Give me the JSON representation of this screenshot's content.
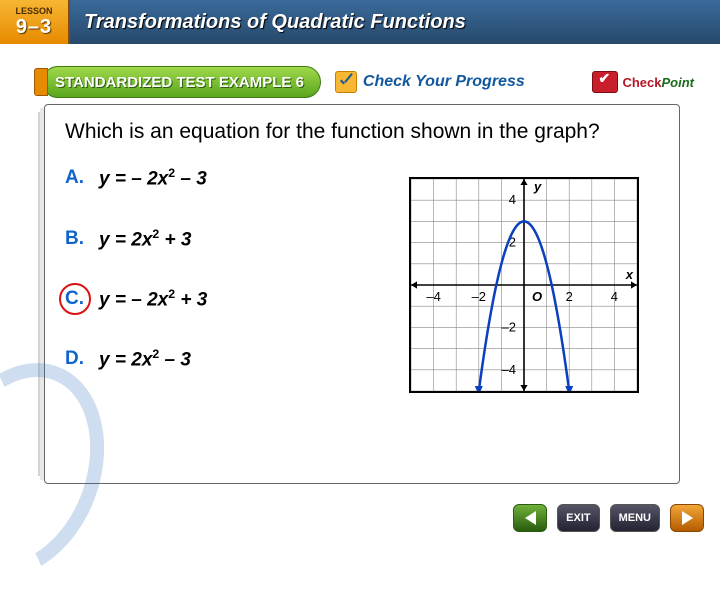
{
  "lesson": {
    "tab_label": "LESSON",
    "number": "9–3",
    "title": "Transformations of Quadratic Functions"
  },
  "example_bar": {
    "pill": "STANDARDIZED TEST EXAMPLE 6",
    "check_progress": "Check Your Progress",
    "checkpoint_ck": "Check",
    "checkpoint_pt": "Point"
  },
  "question": "Which is an equation for the function shown in the graph?",
  "choices": [
    {
      "letter": "A.",
      "prefix": "y",
      "eq": " = – 2",
      "var": "x",
      "sup": "2",
      "tail": " – 3",
      "correct": false
    },
    {
      "letter": "B.",
      "prefix": "y",
      "eq": " = 2",
      "var": "x",
      "sup": "2",
      "tail": " + 3",
      "correct": false
    },
    {
      "letter": "C.",
      "prefix": "y",
      "eq": " = – 2",
      "var": "x",
      "sup": "2",
      "tail": " + 3",
      "correct": true
    },
    {
      "letter": "D.",
      "prefix": "y",
      "eq": " = 2",
      "var": "x",
      "sup": "2",
      "tail": " – 3",
      "correct": false
    }
  ],
  "graph": {
    "type": "parabola",
    "xlim": [
      -5,
      5
    ],
    "ylim": [
      -5,
      5
    ],
    "xticks": [
      -4,
      -2,
      2,
      4
    ],
    "yticks": [
      -4,
      -2,
      2,
      4
    ],
    "xtick_labels": [
      "–4",
      "–2",
      "2",
      "4"
    ],
    "ytick_labels": [
      "–4",
      "–2",
      "2",
      "4"
    ],
    "axis_labels": {
      "x": "x",
      "y": "y",
      "origin": "O"
    },
    "grid_color": "#888888",
    "axis_color": "#000000",
    "curve_color": "#0a3fbd",
    "curve_width": 2.5,
    "arrow_size": 6,
    "label_fontsize": 13,
    "background_color": "#ffffff",
    "function": {
      "a": -2,
      "k": 3,
      "x_draw_range": [
        -2.0,
        2.0
      ]
    }
  },
  "nav": {
    "exit": "EXIT",
    "menu": "MENU"
  },
  "colors": {
    "banner_grad_top": "#3a6a9a",
    "banner_grad_bot": "#27496b",
    "tab_grad_top": "#f7b733",
    "tab_grad_bot": "#e68a00",
    "pill_grad_top": "#9fd84a",
    "pill_grad_bot": "#5aa61e",
    "choice_letter": "#1164c9",
    "correct_ring": "#dd1111",
    "checkpoint_red": "#b41827",
    "checkpoint_green": "#1a6b1a"
  }
}
